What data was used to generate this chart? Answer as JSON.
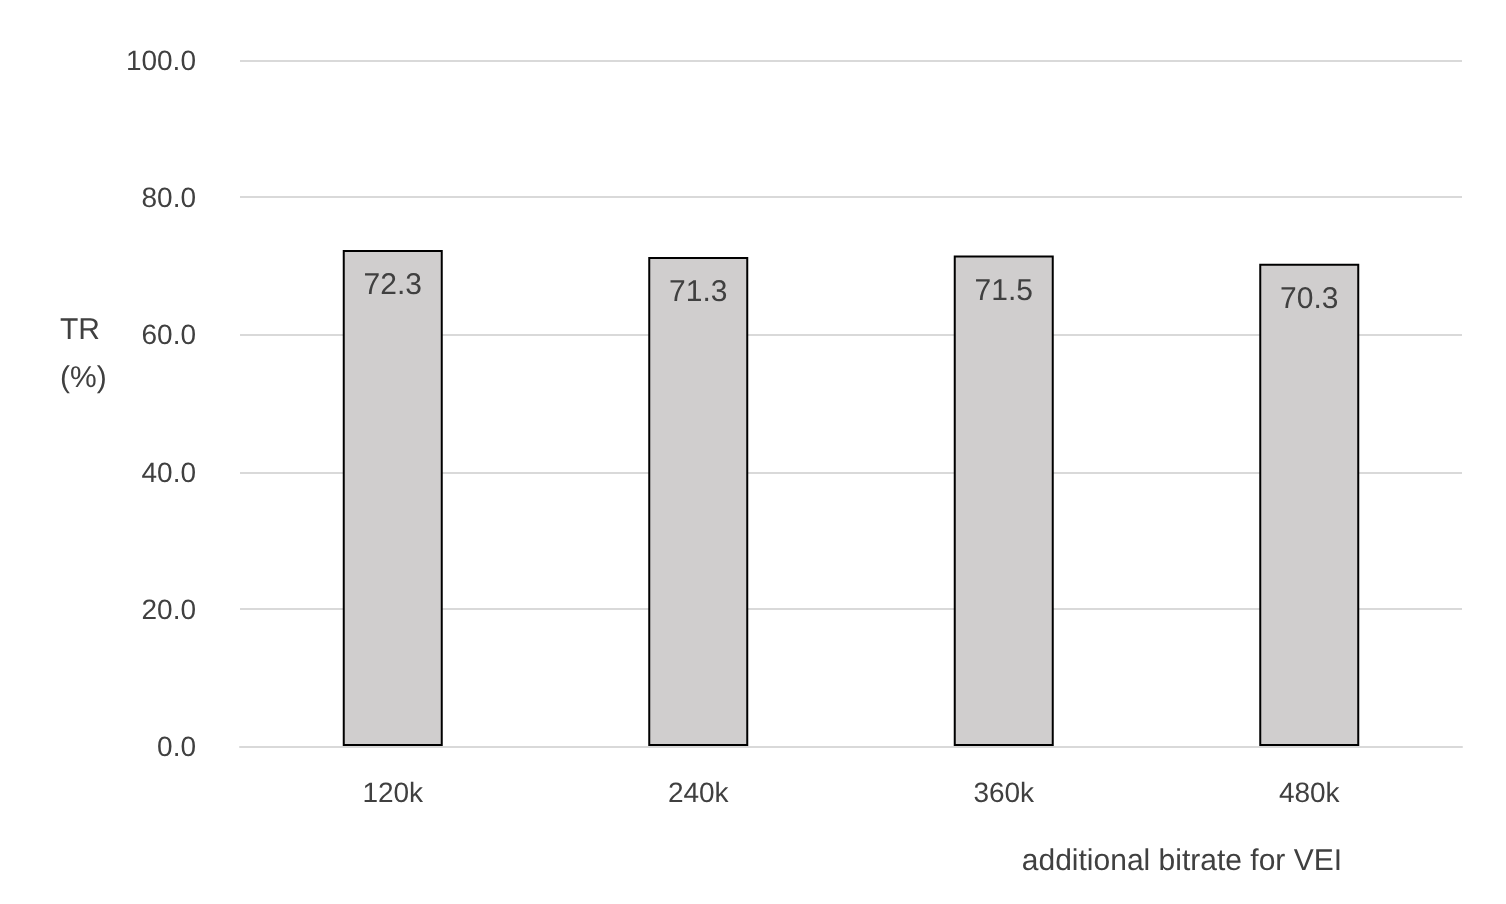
{
  "chart_data": {
    "type": "bar",
    "xlabel": "additional bitrate for VEI",
    "ylabel": "TR (%)",
    "categories": [
      "120k",
      "240k",
      "360k",
      "480k"
    ],
    "values": [
      72.3,
      71.3,
      71.5,
      70.3
    ],
    "color": "#d0cece",
    "ylim": [
      0,
      100
    ],
    "yticks": [
      {
        "value": 0,
        "label": "0.0"
      },
      {
        "value": 20,
        "label": "20.0"
      },
      {
        "value": 40,
        "label": "40.0"
      },
      {
        "value": 60,
        "label": "60.0"
      },
      {
        "value": 80,
        "label": "80.0"
      },
      {
        "value": 100,
        "label": "100.0"
      }
    ],
    "grid": "y",
    "data_labels": true
  }
}
